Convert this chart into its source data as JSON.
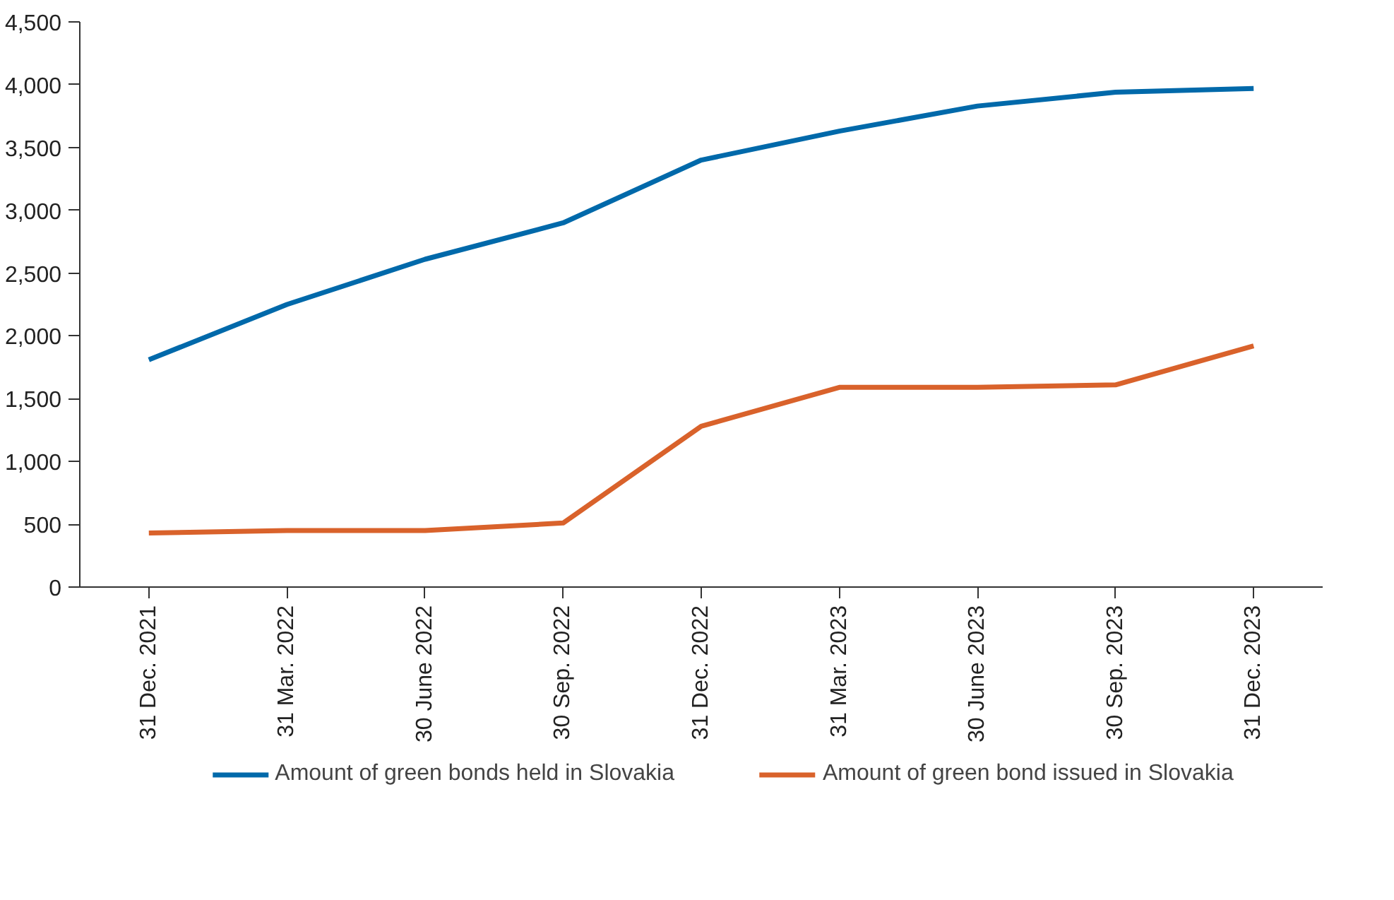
{
  "chart_data": {
    "type": "line",
    "categories": [
      "31 Dec. 2021",
      "31 Mar. 2022",
      "30 June 2022",
      "30 Sep. 2022",
      "31 Dec. 2022",
      "31 Mar. 2023",
      "30 June 2023",
      "30 Sep. 2023",
      "31 Dec. 2023"
    ],
    "series": [
      {
        "name": "Amount of green bonds held in Slovakia",
        "color": "#0069aa",
        "values": [
          1810,
          2250,
          2610,
          2900,
          3400,
          3630,
          3830,
          3940,
          3970
        ]
      },
      {
        "name": "Amount of green bond issued in Slovakia",
        "color": "#d9622b",
        "values": [
          430,
          450,
          450,
          510,
          1280,
          1590,
          1590,
          1610,
          1920
        ]
      }
    ],
    "ylim": [
      0,
      4500
    ],
    "yticks": [
      {
        "value": 0,
        "label": "0"
      },
      {
        "value": 500,
        "label": "500"
      },
      {
        "value": 1000,
        "label": "1,000"
      },
      {
        "value": 1500,
        "label": "1,500"
      },
      {
        "value": 2000,
        "label": "2,000"
      },
      {
        "value": 2500,
        "label": "2,500"
      },
      {
        "value": 3000,
        "label": "3,000"
      },
      {
        "value": 3500,
        "label": "3,500"
      },
      {
        "value": 4000,
        "label": "4,000"
      },
      {
        "value": 4500,
        "label": "4,500"
      }
    ],
    "grid": false,
    "legend": "bottom",
    "marker": "none",
    "line_style": "solid"
  }
}
